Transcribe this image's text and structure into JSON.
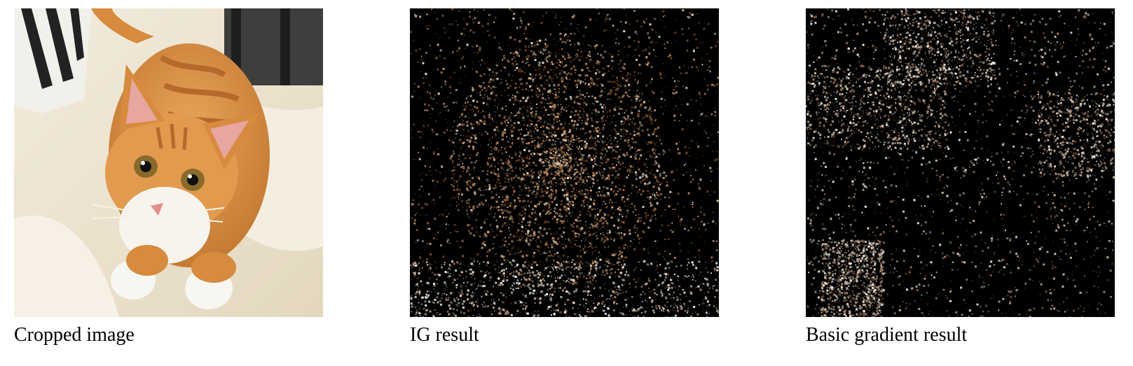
{
  "figure": {
    "panels": [
      {
        "caption": "Cropped image",
        "image_content": "orange-tabby-kitten-on-white-pillow"
      },
      {
        "caption": "IG result",
        "image_content": "attribution-map-concentrated-on-kitten-face"
      },
      {
        "caption": "Basic gradient result",
        "image_content": "attribution-map-scattered-noise"
      }
    ]
  },
  "colors": {
    "map_background": "#000000",
    "ig_highlight": "#b07a4a",
    "basic_highlight": "#c9b39a",
    "kitten_orange": "#d68b3e",
    "pillow": "#ede4d0"
  }
}
